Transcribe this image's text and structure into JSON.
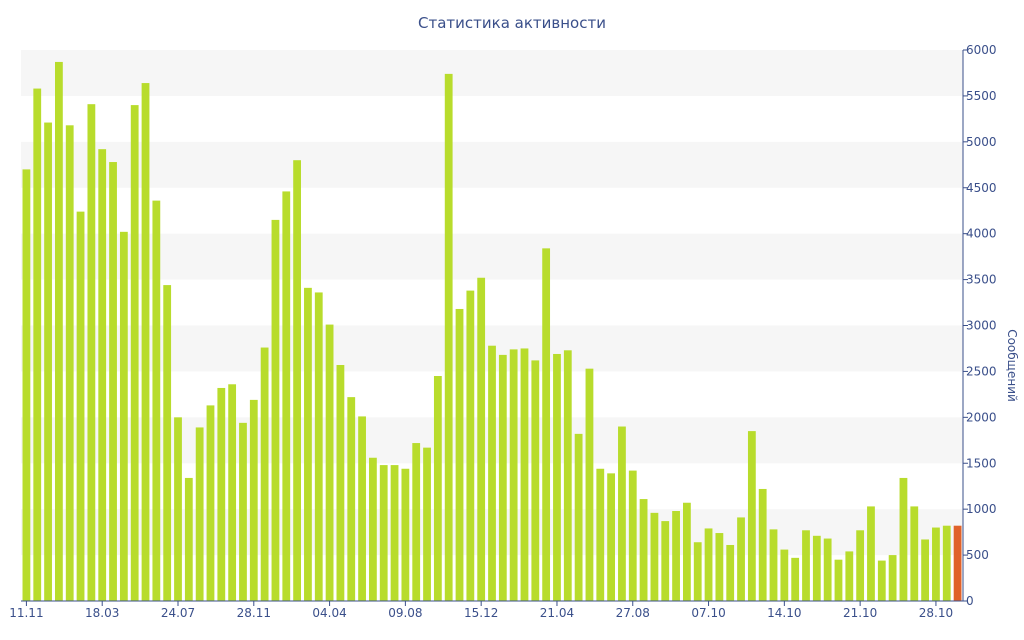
{
  "chart_data": {
    "type": "bar",
    "title": "Статистика активности",
    "ylabel": "Сообщений",
    "ylim": [
      0,
      6000
    ],
    "yticks": [
      0,
      500,
      1000,
      1500,
      2000,
      2500,
      3000,
      3500,
      4000,
      4500,
      5000,
      5500,
      6000
    ],
    "x_tick_labels": [
      {
        "index": 0,
        "label": "11.11"
      },
      {
        "index": 7,
        "label": "18.03"
      },
      {
        "index": 14,
        "label": "24.07"
      },
      {
        "index": 21,
        "label": "28.11"
      },
      {
        "index": 28,
        "label": "04.04"
      },
      {
        "index": 35,
        "label": "09.08"
      },
      {
        "index": 42,
        "label": "15.12"
      },
      {
        "index": 49,
        "label": "21.04"
      },
      {
        "index": 56,
        "label": "27.08"
      },
      {
        "index": 63,
        "label": "07.10"
      },
      {
        "index": 70,
        "label": "14.10"
      },
      {
        "index": 77,
        "label": "21.10"
      },
      {
        "index": 84,
        "label": "28.10"
      }
    ],
    "values": [
      4700,
      5580,
      5210,
      5870,
      5180,
      4240,
      5410,
      4920,
      4780,
      4020,
      5400,
      5640,
      4360,
      3440,
      2000,
      1340,
      1890,
      2130,
      2320,
      2360,
      1940,
      2190,
      2760,
      4150,
      4460,
      4800,
      3410,
      3360,
      3010,
      2570,
      2220,
      2010,
      1560,
      1480,
      1480,
      1440,
      1720,
      1670,
      2450,
      5740,
      3180,
      3380,
      3520,
      2780,
      2680,
      2740,
      2750,
      2620,
      3840,
      2690,
      2730,
      1820,
      2530,
      1440,
      1390,
      1900,
      1420,
      1110,
      960,
      870,
      980,
      1070,
      640,
      790,
      740,
      610,
      910,
      1850,
      1220,
      780,
      560,
      470,
      770,
      710,
      680,
      450,
      540,
      770,
      1030,
      440,
      500,
      1340,
      1030,
      670,
      800,
      820,
      820
    ],
    "bar_color": "#b8dc2c",
    "highlight_color": "#e0622a",
    "highlight_index": 86,
    "band_color": "#f6f6f6",
    "grid": true
  }
}
